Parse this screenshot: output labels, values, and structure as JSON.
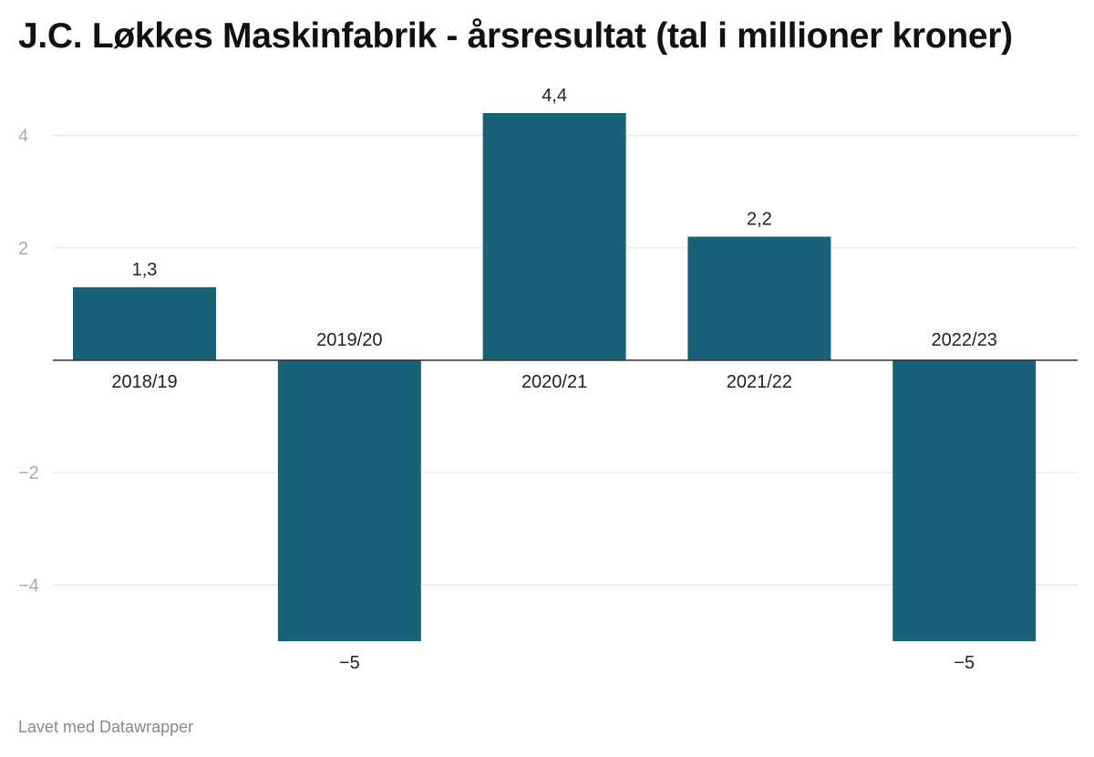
{
  "title": "J.C. Løkkes Maskinfabrik - årsresultat (tal i millioner kroner)",
  "footer": "Lavet med Datawrapper",
  "colors": {
    "bar": "#176179",
    "grid": "#e6e6e6",
    "baseline": "#333333",
    "tick_label": "#aaaaaa",
    "text": "#222222"
  },
  "chart_data": {
    "type": "bar",
    "title": "J.C. Løkkes Maskinfabrik - årsresultat (tal i millioner kroner)",
    "categories": [
      "2018/19",
      "2019/20",
      "2020/21",
      "2021/22",
      "2022/23"
    ],
    "values": [
      1.3,
      -5,
      4.4,
      2.2,
      -5
    ],
    "value_labels": [
      "1,3",
      "−5",
      "4,4",
      "2,2",
      "−5"
    ],
    "yticks": [
      4,
      2,
      -2,
      -4
    ],
    "ytick_labels": [
      "4",
      "2",
      "−2",
      "−4"
    ],
    "ylim": [
      -5.3,
      4.8
    ],
    "grid": true,
    "legend": "none"
  }
}
